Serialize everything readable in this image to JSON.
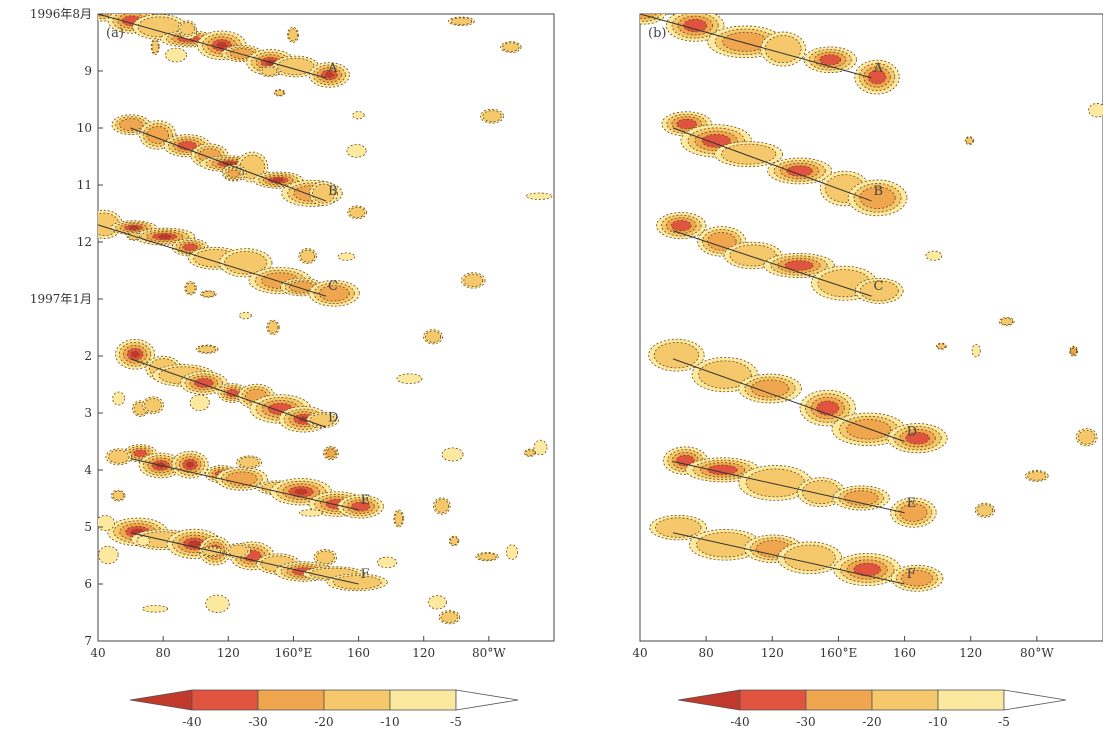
{
  "chart_data": [
    {
      "type": "heatmap",
      "panel_label": "(a)",
      "y_ticks": [
        "1996年8月",
        "9",
        "10",
        "11",
        "12",
        "1997年1月",
        "2",
        "3",
        "4",
        "5",
        "6",
        "7"
      ],
      "x_ticks": [
        "40",
        "80",
        "120",
        "160°E",
        "160",
        "120",
        "80°W"
      ],
      "propagation_lines": [
        {
          "label": "A",
          "start": {
            "lon_E": 40,
            "month": 0.0
          },
          "end": {
            "lon_E": 180,
            "month": 1.12
          }
        },
        {
          "label": "B",
          "start": {
            "lon_E": 60,
            "month": 2.0
          },
          "end": {
            "lon_E": 180,
            "month": 3.28
          }
        },
        {
          "label": "C",
          "start": {
            "lon_E": 40,
            "month": 3.7
          },
          "end": {
            "lon_E": 180,
            "month": 4.95
          }
        },
        {
          "label": "D",
          "start": {
            "lon_E": 60,
            "month": 6.05
          },
          "end": {
            "lon_E": 180,
            "month": 7.25
          }
        },
        {
          "label": "E",
          "start": {
            "lon_E": 60,
            "month": 7.8
          },
          "end": {
            "lon_E": 200,
            "month": 8.7
          }
        },
        {
          "label": "F",
          "start": {
            "lon_E": 60,
            "month": 9.1
          },
          "end": {
            "lon_E": 200,
            "month": 10.0
          }
        }
      ]
    },
    {
      "type": "heatmap",
      "panel_label": "(b)",
      "y_ticks": [],
      "x_ticks": [
        "40",
        "80",
        "120",
        "160°E",
        "160",
        "120",
        "80°W"
      ],
      "propagation_lines": [
        {
          "label": "A",
          "start": {
            "lon_E": 40,
            "month": 0.0
          },
          "end": {
            "lon_E": 180,
            "month": 1.12
          }
        },
        {
          "label": "B",
          "start": {
            "lon_E": 60,
            "month": 2.0
          },
          "end": {
            "lon_E": 180,
            "month": 3.28
          }
        },
        {
          "label": "C",
          "start": {
            "lon_E": 60,
            "month": 3.8
          },
          "end": {
            "lon_E": 180,
            "month": 4.95
          }
        },
        {
          "label": "D",
          "start": {
            "lon_E": 60,
            "month": 6.05
          },
          "end": {
            "lon_E": 200,
            "month": 7.5
          }
        },
        {
          "label": "E",
          "start": {
            "lon_E": 60,
            "month": 7.85
          },
          "end": {
            "lon_E": 200,
            "month": 8.75
          }
        },
        {
          "label": "F",
          "start": {
            "lon_E": 60,
            "month": 9.1
          },
          "end": {
            "lon_E": 200,
            "month": 10.0
          }
        }
      ]
    }
  ],
  "colorbar": {
    "ticks": [
      "-40",
      "-30",
      "-20",
      "-10",
      "-5"
    ],
    "colors": {
      "below_-40": "#c0392b",
      "-40_to_-30": "#e0543f",
      "-30_to_-20": "#f0a64e",
      "-20_to_-10": "#f5c86b",
      "-10_to_-5": "#fbe9a0",
      "above_-5": "#ffffff"
    }
  }
}
